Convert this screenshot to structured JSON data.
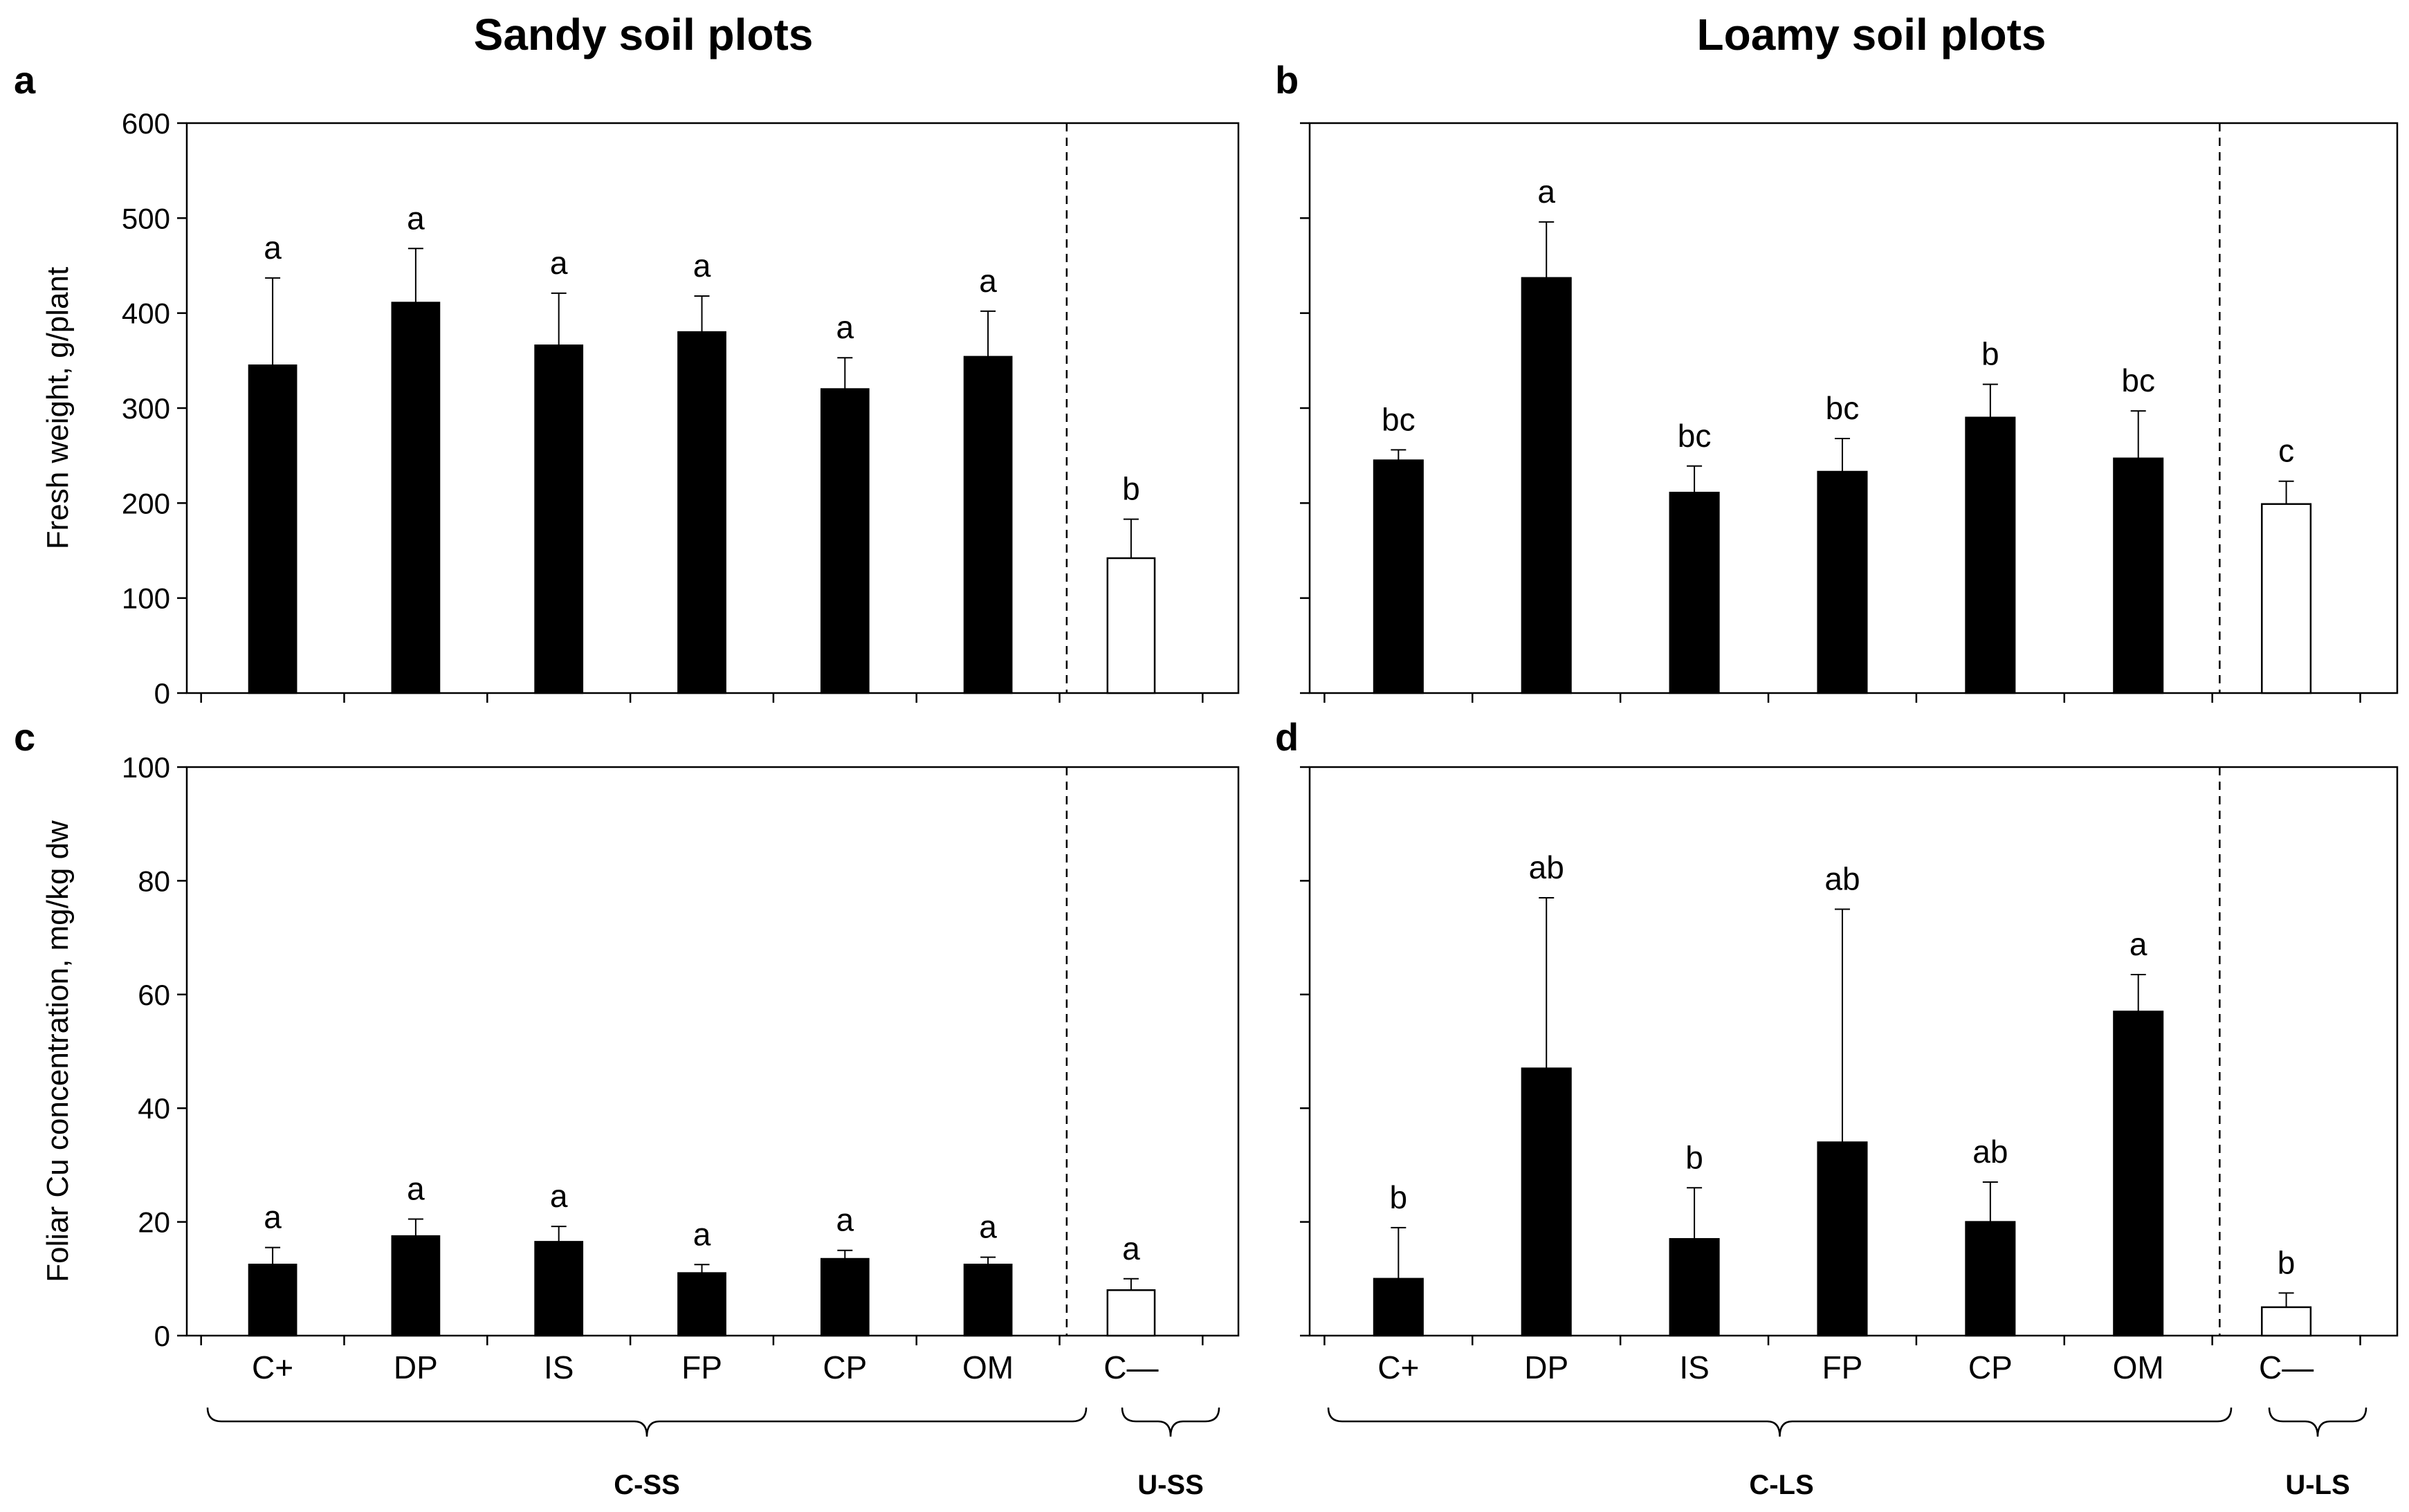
{
  "figure": {
    "titles": [
      "Sandy soil plots",
      "Loamy soil plots"
    ],
    "group_labels": {
      "sandy": [
        "C-SS",
        "U-SS"
      ],
      "loamy": [
        "C-LS",
        "U-LS"
      ]
    },
    "colors": {
      "treated": "#000000",
      "untreated": "#ffffff",
      "axis": "#000000"
    }
  },
  "chart_data": [
    {
      "panel": "a",
      "type": "bar",
      "title": "Sandy soil plots",
      "ylabel": "Fresh weight, g/plant",
      "ylim": [
        0,
        600
      ],
      "yticks": [
        0,
        100,
        200,
        300,
        400,
        500,
        600
      ],
      "show_tick_labels": true,
      "xlabel": "",
      "categories": [
        "C+",
        "DP",
        "IS",
        "FP",
        "CP",
        "OM",
        "C—"
      ],
      "values": [
        345,
        411,
        366,
        380,
        320,
        354,
        142
      ],
      "errors": [
        92,
        57,
        55,
        38,
        33,
        48,
        41
      ],
      "significance": [
        "a",
        "a",
        "a",
        "a",
        "a",
        "a",
        "b"
      ],
      "fills": [
        "black",
        "black",
        "black",
        "black",
        "black",
        "black",
        "white"
      ]
    },
    {
      "panel": "b",
      "type": "bar",
      "title": "Loamy soil plots",
      "ylabel": "",
      "ylim": [
        0,
        600
      ],
      "yticks": [
        0,
        100,
        200,
        300,
        400,
        500,
        600
      ],
      "show_tick_labels": false,
      "xlabel": "",
      "categories": [
        "C+",
        "DP",
        "IS",
        "FP",
        "CP",
        "OM",
        "C—"
      ],
      "values": [
        245,
        437,
        211,
        233,
        290,
        247,
        199
      ],
      "errors": [
        11,
        59,
        28,
        35,
        35,
        50,
        24
      ],
      "significance": [
        "bc",
        "a",
        "bc",
        "bc",
        "b",
        "bc",
        "c"
      ],
      "fills": [
        "black",
        "black",
        "black",
        "black",
        "black",
        "black",
        "white"
      ]
    },
    {
      "panel": "c",
      "type": "bar",
      "title": "",
      "ylabel": "Foliar Cu concentration,  mg/kg dw",
      "ylim": [
        0,
        100
      ],
      "yticks": [
        0,
        20,
        40,
        60,
        80,
        100
      ],
      "show_tick_labels": true,
      "xlabel": "",
      "categories": [
        "C+",
        "DP",
        "IS",
        "FP",
        "CP",
        "OM",
        "C—"
      ],
      "values": [
        12.5,
        17.5,
        16.5,
        11.0,
        13.5,
        12.5,
        8.0
      ],
      "errors": [
        3.0,
        3.0,
        2.7,
        1.5,
        1.5,
        1.3,
        2.0
      ],
      "significance": [
        "a",
        "a",
        "a",
        "a",
        "a",
        "a",
        "a"
      ],
      "fills": [
        "black",
        "black",
        "black",
        "black",
        "black",
        "black",
        "white"
      ]
    },
    {
      "panel": "d",
      "type": "bar",
      "title": "",
      "ylabel": "",
      "ylim": [
        0,
        100
      ],
      "yticks": [
        0,
        20,
        40,
        60,
        80,
        100
      ],
      "show_tick_labels": false,
      "xlabel": "",
      "categories": [
        "C+",
        "DP",
        "IS",
        "FP",
        "CP",
        "OM",
        "C—"
      ],
      "values": [
        10,
        47,
        17,
        34,
        20,
        57,
        5
      ],
      "errors": [
        9,
        30,
        9,
        41,
        7,
        6.5,
        2.5
      ],
      "significance": [
        "b",
        "ab",
        "b",
        "ab",
        "ab",
        "a",
        "b"
      ],
      "fills": [
        "black",
        "black",
        "black",
        "black",
        "black",
        "black",
        "white"
      ]
    }
  ]
}
